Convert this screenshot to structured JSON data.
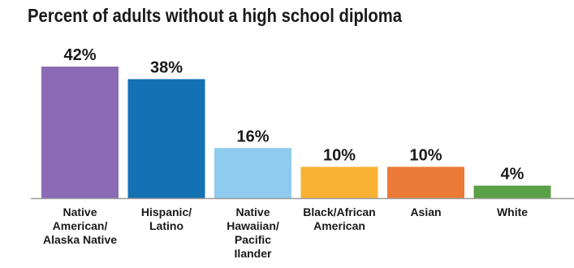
{
  "chart_data": {
    "type": "bar",
    "title": "Percent of adults without a high school diploma",
    "categories": [
      [
        "Native",
        "American/",
        "Alaska Native"
      ],
      [
        "Hispanic/",
        "Latino"
      ],
      [
        "Native",
        "Hawaiian/",
        "Pacific",
        "Ilander"
      ],
      [
        "Black/African",
        "American"
      ],
      [
        "Asian"
      ],
      [
        "White"
      ]
    ],
    "values": [
      42,
      38,
      16,
      10,
      10,
      4
    ],
    "value_labels": [
      "42%",
      "38%",
      "16%",
      "10%",
      "10%",
      "4%"
    ],
    "colors": [
      "#8b6bb5",
      "#1471b4",
      "#8fcbee",
      "#f9b233",
      "#ea7a35",
      "#5aa046"
    ],
    "baseline_color": "#9a9a9a",
    "xlabel": "",
    "ylabel": "",
    "ylim": [
      0,
      42
    ],
    "grid": false,
    "legend": "none"
  }
}
